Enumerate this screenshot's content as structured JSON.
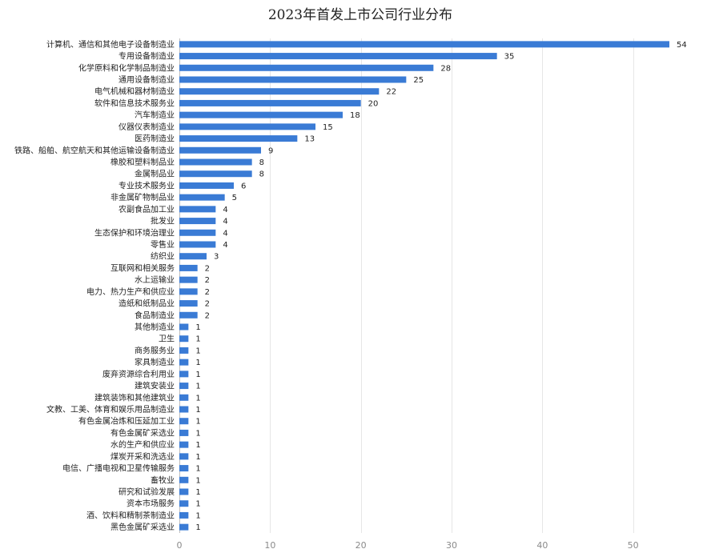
{
  "chart_data": {
    "type": "bar",
    "orientation": "horizontal",
    "title": "2023年首发上市公司行业分布",
    "xlabel": "",
    "ylabel": "",
    "xlim": [
      0,
      54
    ],
    "x_ticks": [
      0,
      10,
      20,
      30,
      40,
      50
    ],
    "grid": true,
    "legend": "none",
    "bar_color": "#3a7bd5",
    "categories": [
      "计算机、通信和其他电子设备制造业",
      "专用设备制造业",
      "化学原料和化学制品制造业",
      "通用设备制造业",
      "电气机械和器材制造业",
      "软件和信息技术服务业",
      "汽车制造业",
      "仪器仪表制造业",
      "医药制造业",
      "铁路、船舶、航空航天和其他运输设备制造业",
      "橡胶和塑料制品业",
      "金属制品业",
      "专业技术服务业",
      "非金属矿物制品业",
      "农副食品加工业",
      "批发业",
      "生态保护和环境治理业",
      "零售业",
      "纺织业",
      "互联网和相关服务",
      "水上运输业",
      "电力、热力生产和供应业",
      "造纸和纸制品业",
      "食品制造业",
      "其他制造业",
      "卫生",
      "商务服务业",
      "家具制造业",
      "废弃资源综合利用业",
      "建筑安装业",
      "建筑装饰和其他建筑业",
      "文教、工美、体育和娱乐用品制造业",
      "有色金属冶炼和压延加工业",
      "有色金属矿采选业",
      "水的生产和供应业",
      "煤炭开采和洗选业",
      "电信、广播电视和卫星传输服务",
      "畜牧业",
      "研究和试验发展",
      "资本市场服务",
      "酒、饮料和精制茶制造业",
      "黑色金属矿采选业"
    ],
    "values": [
      54,
      35,
      28,
      25,
      22,
      20,
      18,
      15,
      13,
      9,
      8,
      8,
      6,
      5,
      4,
      4,
      4,
      4,
      3,
      2,
      2,
      2,
      2,
      2,
      1,
      1,
      1,
      1,
      1,
      1,
      1,
      1,
      1,
      1,
      1,
      1,
      1,
      1,
      1,
      1,
      1,
      1
    ]
  }
}
